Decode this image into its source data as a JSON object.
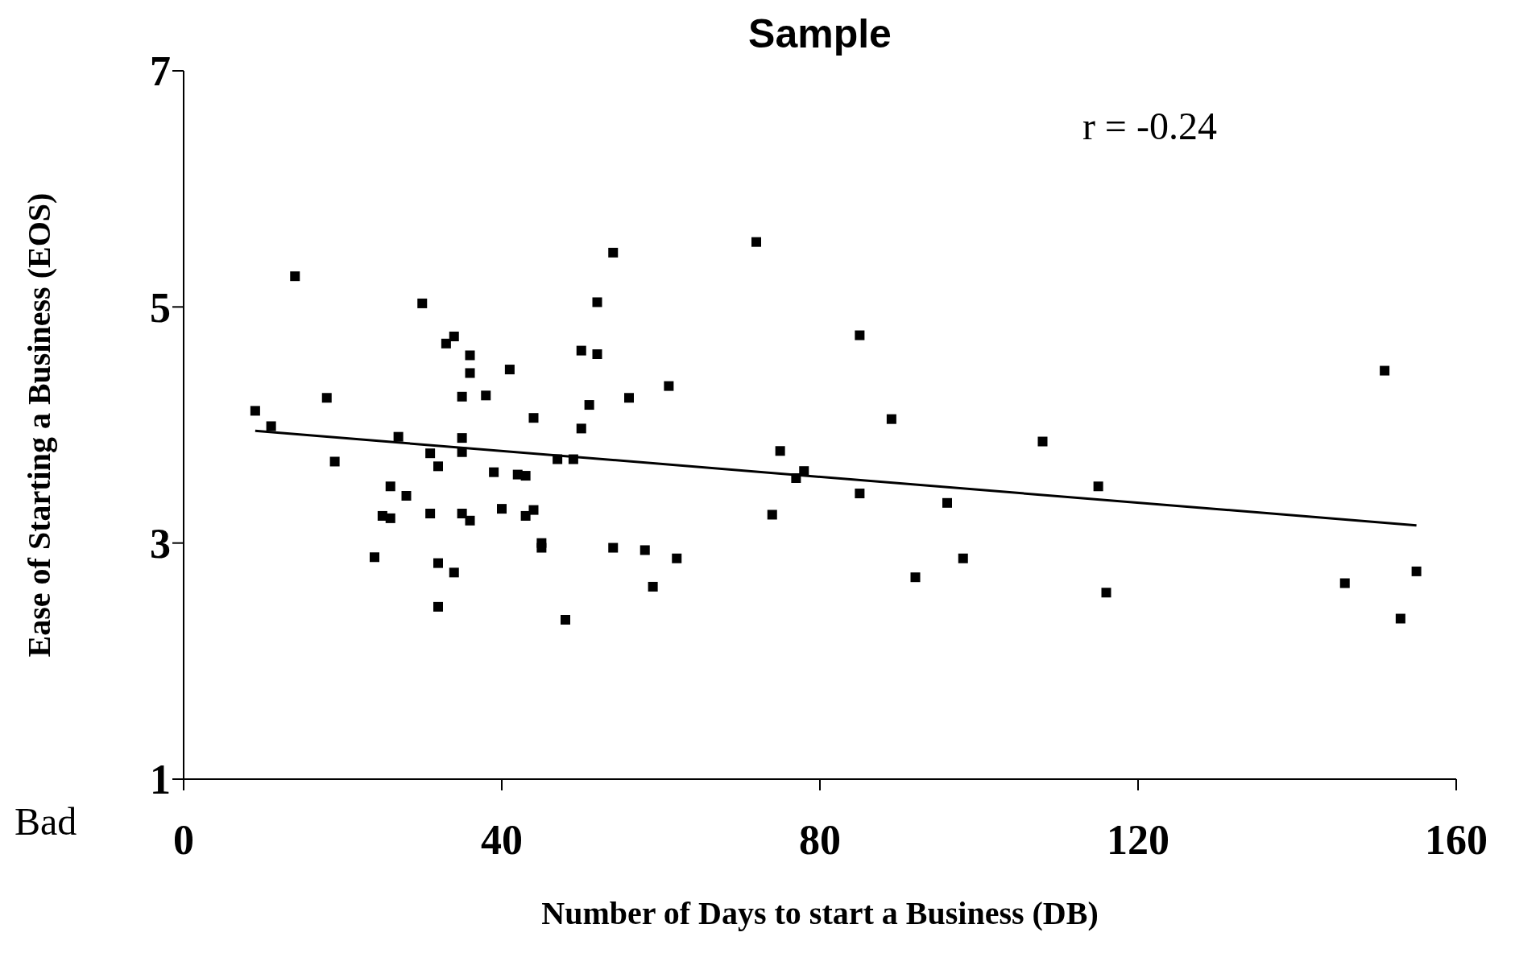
{
  "chart_data": {
    "type": "scatter",
    "title": "Sample",
    "xlabel": "Number of Days to start a Business (DB)",
    "ylabel": "Ease of Starting a Business (EOS)",
    "annotations": [
      "r = -0.24",
      "Bad"
    ],
    "xlim": [
      0,
      160
    ],
    "xticks": [
      0,
      40,
      80,
      120,
      160
    ],
    "ylim": [
      1,
      7
    ],
    "yticks": [
      1,
      3,
      5,
      7
    ],
    "grid": false,
    "legend": false,
    "series": [
      {
        "color": "#000000",
        "marker": "square",
        "x": [
          9,
          11,
          14,
          18,
          19,
          24,
          25,
          26,
          26,
          27,
          28,
          30,
          31,
          31,
          32,
          32,
          32,
          33,
          34,
          34,
          35,
          35,
          35,
          35,
          36,
          36,
          36,
          38,
          39,
          40,
          41,
          42,
          43,
          43,
          44,
          44,
          45,
          45,
          47,
          48,
          49,
          50,
          50,
          51,
          52,
          52,
          54,
          54,
          56,
          58,
          59,
          61,
          62,
          72,
          74,
          75,
          77,
          78,
          85,
          85,
          89,
          92,
          96,
          98,
          108,
          115,
          116,
          146,
          151,
          153,
          155
        ],
        "values": [
          4.12,
          3.99,
          5.26,
          4.23,
          3.69,
          2.88,
          3.23,
          3.48,
          3.21,
          3.9,
          3.4,
          5.03,
          3.76,
          3.25,
          3.65,
          2.83,
          2.46,
          4.69,
          4.75,
          2.75,
          4.24,
          3.89,
          3.77,
          3.25,
          4.59,
          4.44,
          3.19,
          4.25,
          3.6,
          3.29,
          4.47,
          3.58,
          3.57,
          3.23,
          4.06,
          3.28,
          3.0,
          2.96,
          3.71,
          2.35,
          3.71,
          3.97,
          4.63,
          4.17,
          5.04,
          4.6,
          5.46,
          2.96,
          4.23,
          2.94,
          2.63,
          4.33,
          2.87,
          5.55,
          3.24,
          3.78,
          3.55,
          3.61,
          3.42,
          4.76,
          4.05,
          2.71,
          3.34,
          2.87,
          3.86,
          3.48,
          2.58,
          2.66,
          4.46,
          2.36,
          2.76
        ]
      },
      {
        "type": "line",
        "marker": "none",
        "color": "#000000",
        "x": [
          9,
          155
        ],
        "values": [
          3.95,
          3.15
        ]
      }
    ]
  }
}
